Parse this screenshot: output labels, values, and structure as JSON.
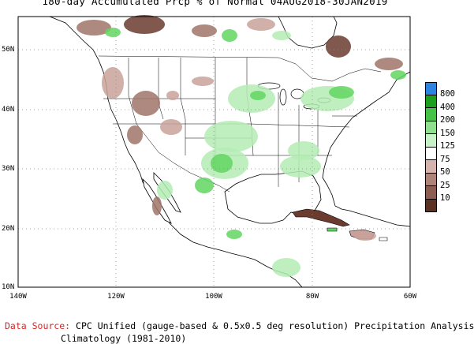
{
  "title": "180-day Accumulated Prcp % of Normal 04AUG2018-30JAN2019",
  "map": {
    "lat_labels": [
      "50N",
      "40N",
      "30N",
      "20N",
      "10N"
    ],
    "lon_labels": [
      "140W",
      "120W",
      "100W",
      "80W",
      "60W"
    ],
    "grid": "dotted",
    "colors": {
      "water": "#ffffff",
      "land": "#ffffff",
      "coast": "#000000",
      "dry_strong": "#6a3b2e",
      "dry_mid": "#a0746a",
      "dry_light": "#c8a29a",
      "wet_light": "#b4ecb4",
      "wet_mid": "#62d662",
      "wet_strong": "#22a822"
    }
  },
  "legend": {
    "labels": [
      "800",
      "400",
      "200",
      "150",
      "125",
      "75",
      "50",
      "25",
      "10"
    ],
    "colors": [
      "#2c84e0",
      "#1e9e1e",
      "#46c246",
      "#8ee08e",
      "#c7f2c7",
      "#ffffff",
      "#d4b4ac",
      "#ad8478",
      "#8c5e52",
      "#5a3224"
    ]
  },
  "source": {
    "lead": "Data Source:",
    "line1": "CPC Unified (gauge-based & 0.5x0.5 deg resolution) Precipitation Analysis",
    "line2": "Climatology (1981-2010)"
  }
}
